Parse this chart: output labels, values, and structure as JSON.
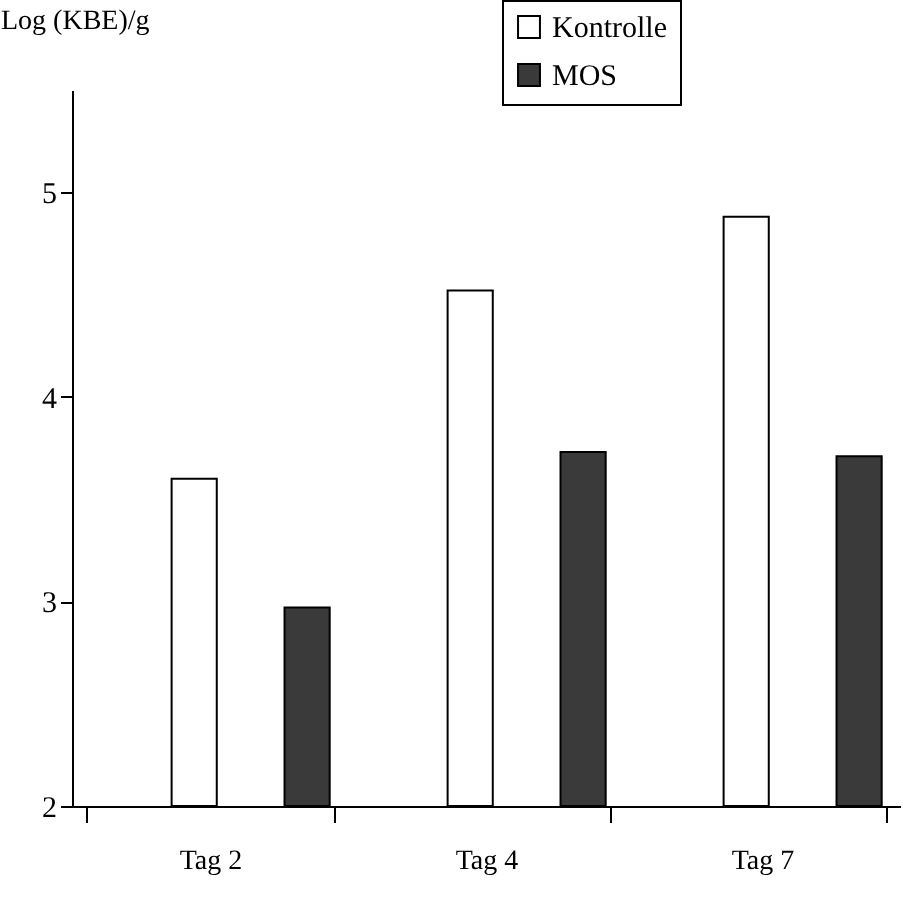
{
  "chart_data": {
    "type": "bar",
    "ylabel": "Log (KBE)/g",
    "categories": [
      "Tag 2",
      "Tag 4",
      "Tag 7"
    ],
    "series": [
      {
        "name": "Kontrolle",
        "color": "#ffffff",
        "values": [
          3.6,
          4.52,
          4.88
        ]
      },
      {
        "name": "MOS",
        "color": "#3a3a3a",
        "values": [
          2.97,
          3.73,
          3.71
        ]
      }
    ],
    "ylim": [
      2,
      5.5
    ],
    "yticks": [
      2,
      3,
      4,
      5
    ],
    "grid": false,
    "legend": "top"
  }
}
